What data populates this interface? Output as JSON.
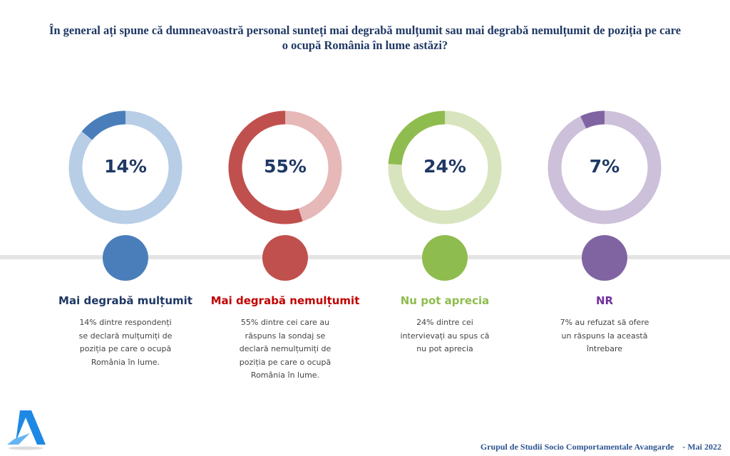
{
  "title": {
    "line1": "În general ați spune că dumneavoastră personal sunteți mai degrabă mulțumit sau mai degrabă nemulțumit de poziția pe care",
    "line2": "o ocupă România în lume astăzi?"
  },
  "chart_data": {
    "type": "pie",
    "title": "În general ați spune că dumneavoastră personal sunteți mai degrabă mulțumit sau mai degrabă nemulțumit de poziția pe care o ocupă România în lume astăzi?",
    "categories": [
      "Mai degrabă mulțumit",
      "Mai degrabă nemulțumit",
      "Nu pot aprecia",
      "NR"
    ],
    "values": [
      14,
      55,
      24,
      7
    ],
    "unit": "%"
  },
  "items": [
    {
      "pct": "14%",
      "label": "Mai degrabă mulțumit",
      "desc": "14% dintre respondenți se declară mulțumiți de poziția pe care o ocupă România în lume.",
      "color": "#4a7ebb",
      "light": "#b8cde6",
      "label_color": "#1f3864"
    },
    {
      "pct": "55%",
      "label": "Mai degrabă nemulțumit",
      "desc": "55% dintre cei care au răspuns la sondaj se declară nemulțumiți de poziția pe care o ocupă România în lume.",
      "color": "#c0504d",
      "light": "#e6b8b7",
      "label_color": "#c00000"
    },
    {
      "pct": "24%",
      "label": "Nu pot aprecia",
      "desc": "24% dintre cei intervievați au spus că nu pot aprecia",
      "color": "#8fbc4f",
      "light": "#d7e4bd",
      "label_color": "#8fbc4f"
    },
    {
      "pct": "7%",
      "label": "NR",
      "desc": "7% au refuzat să ofere un răspuns la această întrebare",
      "color": "#8064a2",
      "light": "#ccc0da",
      "label_color": "#7030a0"
    }
  ],
  "footer": {
    "organization": "Grupul de Studii Socio Comportamentale Avangarde",
    "date": "- Mai 2022"
  },
  "logo": {
    "icon": "avangarde-logo-icon",
    "colors": [
      "#1e88e5",
      "#64b5f6"
    ]
  }
}
